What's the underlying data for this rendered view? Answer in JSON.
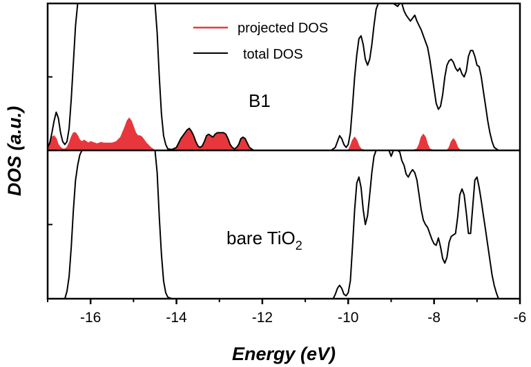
{
  "chart_data": {
    "type": "line",
    "xlabel": "Energy (eV)",
    "ylabel": "DOS (a.u.)",
    "xlim": [
      -17,
      -6
    ],
    "x_ticks": [
      "-16",
      "-14",
      "-12",
      "-10",
      "-8",
      "-6"
    ],
    "legend": {
      "position": "top-center",
      "entries": [
        {
          "name": "projected DOS",
          "color": "#e8373c"
        },
        {
          "name": "total DOS",
          "color": "#000000"
        }
      ]
    },
    "panels": [
      {
        "label": "B1",
        "position": "top",
        "ylim": [
          0,
          1
        ],
        "series": [
          {
            "name": "total DOS",
            "color": "#000000",
            "x": [
              -17.0,
              -16.95,
              -16.9,
              -16.85,
              -16.8,
              -16.75,
              -16.7,
              -16.65,
              -16.6,
              -16.55,
              -16.5,
              -16.45,
              -16.4,
              -16.35,
              -16.3,
              -16.25,
              -14.5,
              -14.45,
              -14.4,
              -14.35,
              -14.3,
              -14.25,
              -14.2,
              -14.1,
              -14.0,
              -13.95,
              -13.9,
              -13.85,
              -13.8,
              -13.75,
              -13.7,
              -13.65,
              -13.6,
              -13.55,
              -13.5,
              -13.45,
              -13.4,
              -13.35,
              -13.3,
              -13.25,
              -13.2,
              -13.15,
              -13.1,
              -13.05,
              -13.0,
              -12.95,
              -12.9,
              -12.85,
              -12.8,
              -12.75,
              -12.7,
              -12.65,
              -12.6,
              -12.55,
              -12.5,
              -12.45,
              -12.4,
              -12.35,
              -12.3,
              -12.25,
              -12.2,
              -12.1,
              -11.0,
              -10.4,
              -10.3,
              -10.25,
              -10.2,
              -10.15,
              -10.1,
              -10.05,
              -10.0,
              -9.95,
              -9.9,
              -9.85,
              -9.8,
              -9.75,
              -9.7,
              -9.65,
              -9.6,
              -9.55,
              -9.5,
              -9.45,
              -9.4,
              -9.35,
              -9.3,
              -9.25,
              -9.2,
              -9.15,
              -9.1,
              -9.05,
              -9.0,
              -8.95,
              -8.9,
              -8.85,
              -8.8,
              -8.75,
              -8.7,
              -8.65,
              -8.6,
              -8.55,
              -8.5,
              -8.45,
              -8.4,
              -8.35,
              -8.3,
              -8.25,
              -8.2,
              -8.15,
              -8.1,
              -8.05,
              -8.0,
              -7.95,
              -7.9,
              -7.85,
              -7.8,
              -7.75,
              -7.7,
              -7.65,
              -7.6,
              -7.55,
              -7.5,
              -7.45,
              -7.4,
              -7.35,
              -7.3,
              -7.25,
              -7.2,
              -7.15,
              -7.1,
              -7.05,
              -7.0,
              -6.95,
              -6.9,
              -6.85,
              -6.8,
              -6.75,
              -6.7,
              -6.65,
              -6.6,
              -6.5,
              -6.0
            ],
            "y": [
              0.02,
              0.05,
              0.12,
              0.2,
              0.26,
              0.22,
              0.12,
              0.06,
              0.04,
              0.06,
              0.15,
              0.35,
              0.6,
              0.85,
              1.0,
              1.0,
              1.0,
              0.8,
              0.5,
              0.25,
              0.1,
              0.04,
              0.01,
              0.005,
              0.02,
              0.05,
              0.08,
              0.1,
              0.12,
              0.14,
              0.15,
              0.13,
              0.1,
              0.06,
              0.03,
              0.02,
              0.03,
              0.06,
              0.1,
              0.11,
              0.1,
              0.09,
              0.11,
              0.12,
              0.12,
              0.12,
              0.12,
              0.11,
              0.08,
              0.04,
              0.02,
              0.01,
              0.02,
              0.04,
              0.08,
              0.09,
              0.08,
              0.05,
              0.02,
              0.01,
              0.0,
              0.0,
              0.0,
              0.0,
              0.02,
              0.06,
              0.1,
              0.08,
              0.04,
              0.02,
              0.04,
              0.12,
              0.3,
              0.5,
              0.65,
              0.76,
              0.78,
              0.72,
              0.62,
              0.58,
              0.62,
              0.72,
              0.85,
              0.96,
              1.0,
              1.0,
              1.0,
              1.0,
              1.0,
              1.0,
              1.0,
              1.0,
              0.99,
              0.98,
              1.0,
              1.0,
              0.95,
              0.92,
              0.9,
              0.88,
              0.9,
              0.92,
              0.88,
              0.85,
              0.82,
              0.78,
              0.74,
              0.7,
              0.62,
              0.52,
              0.42,
              0.32,
              0.28,
              0.3,
              0.38,
              0.5,
              0.58,
              0.61,
              0.62,
              0.6,
              0.56,
              0.54,
              0.56,
              0.52,
              0.5,
              0.54,
              0.64,
              0.68,
              0.68,
              0.64,
              0.58,
              0.57,
              0.5,
              0.4,
              0.3,
              0.2,
              0.12,
              0.06,
              0.02,
              0.0,
              0.0
            ]
          },
          {
            "name": "projected DOS",
            "color": "#e8373c",
            "fill": true,
            "x": [
              -17.0,
              -16.95,
              -16.9,
              -16.85,
              -16.8,
              -16.75,
              -16.7,
              -16.65,
              -16.6,
              -16.55,
              -16.5,
              -16.45,
              -16.4,
              -16.35,
              -16.3,
              -16.25,
              -16.2,
              -16.15,
              -16.1,
              -16.05,
              -16.0,
              -15.9,
              -15.85,
              -15.8,
              -15.75,
              -15.7,
              -15.6,
              -15.5,
              -15.4,
              -15.3,
              -15.2,
              -15.15,
              -15.1,
              -15.05,
              -15.0,
              -14.95,
              -14.9,
              -14.85,
              -14.8,
              -14.75,
              -14.7,
              -14.6,
              -14.55,
              -14.5,
              -14.4,
              -14.2,
              -14.0,
              -13.95,
              -13.9,
              -13.85,
              -13.8,
              -13.75,
              -13.7,
              -13.65,
              -13.6,
              -13.55,
              -13.5,
              -13.45,
              -13.4,
              -13.35,
              -13.3,
              -13.25,
              -13.2,
              -13.15,
              -13.1,
              -13.05,
              -13.0,
              -12.95,
              -12.9,
              -12.85,
              -12.8,
              -12.75,
              -12.7,
              -12.65,
              -12.6,
              -12.55,
              -12.5,
              -12.45,
              -12.4,
              -12.35,
              -12.3,
              -12.25,
              -12.2,
              -12.1,
              -10.0,
              -9.95,
              -9.9,
              -9.85,
              -9.8,
              -9.75,
              -9.7,
              -9.6,
              -8.5,
              -8.4,
              -8.35,
              -8.3,
              -8.25,
              -8.2,
              -8.15,
              -8.1,
              -8.0,
              -7.7,
              -7.65,
              -7.6,
              -7.55,
              -7.5,
              -7.45,
              -7.4,
              -7.3,
              -6.0
            ],
            "y": [
              0.02,
              0.06,
              0.09,
              0.1,
              0.08,
              0.04,
              0.02,
              0.01,
              0.01,
              0.02,
              0.05,
              0.09,
              0.12,
              0.12,
              0.1,
              0.07,
              0.06,
              0.07,
              0.06,
              0.05,
              0.06,
              0.05,
              0.045,
              0.05,
              0.055,
              0.05,
              0.05,
              0.05,
              0.06,
              0.09,
              0.16,
              0.2,
              0.22,
              0.2,
              0.16,
              0.12,
              0.1,
              0.1,
              0.09,
              0.07,
              0.05,
              0.02,
              0.01,
              0.0,
              0.0,
              0.0,
              0.02,
              0.05,
              0.08,
              0.1,
              0.12,
              0.14,
              0.15,
              0.13,
              0.1,
              0.06,
              0.03,
              0.02,
              0.03,
              0.06,
              0.1,
              0.11,
              0.1,
              0.09,
              0.11,
              0.12,
              0.12,
              0.12,
              0.12,
              0.11,
              0.08,
              0.04,
              0.02,
              0.01,
              0.02,
              0.04,
              0.08,
              0.09,
              0.08,
              0.05,
              0.02,
              0.01,
              0.0,
              0.0,
              0.0,
              0.03,
              0.07,
              0.09,
              0.07,
              0.03,
              0.01,
              0.0,
              0.0,
              0.01,
              0.04,
              0.09,
              0.11,
              0.09,
              0.04,
              0.01,
              0.0,
              0.0,
              0.02,
              0.06,
              0.08,
              0.06,
              0.02,
              0.005,
              0.0,
              0.0
            ]
          }
        ]
      },
      {
        "label": "bare TiO",
        "label_subscript": "2",
        "position": "bottom",
        "ylim": [
          0,
          1
        ],
        "series": [
          {
            "name": "total DOS",
            "color": "#000000",
            "x": [
              -17.0,
              -16.8,
              -16.6,
              -16.55,
              -16.5,
              -16.45,
              -16.4,
              -16.35,
              -16.3,
              -16.25,
              -16.2,
              -16.15,
              -14.5,
              -14.45,
              -14.4,
              -14.35,
              -14.3,
              -14.25,
              -14.2,
              -14.1,
              -11.0,
              -10.35,
              -10.3,
              -10.25,
              -10.2,
              -10.15,
              -10.1,
              -10.05,
              -10.0,
              -9.95,
              -9.9,
              -9.85,
              -9.8,
              -9.75,
              -9.7,
              -9.65,
              -9.6,
              -9.55,
              -9.5,
              -9.45,
              -9.4,
              -9.35,
              -9.3,
              -9.25,
              -9.2,
              -9.15,
              -9.1,
              -9.05,
              -9.0,
              -8.95,
              -8.9,
              -8.85,
              -8.8,
              -8.75,
              -8.7,
              -8.65,
              -8.6,
              -8.55,
              -8.5,
              -8.45,
              -8.4,
              -8.35,
              -8.3,
              -8.25,
              -8.2,
              -8.15,
              -8.1,
              -8.05,
              -8.0,
              -7.95,
              -7.9,
              -7.85,
              -7.8,
              -7.75,
              -7.7,
              -7.65,
              -7.6,
              -7.55,
              -7.5,
              -7.45,
              -7.4,
              -7.35,
              -7.3,
              -7.25,
              -7.2,
              -7.15,
              -7.1,
              -7.05,
              -7.0,
              -6.95,
              -6.9,
              -6.85,
              -6.8,
              -6.75,
              -6.7,
              -6.65,
              -6.6,
              -6.55,
              -6.5,
              -6.0
            ],
            "y": [
              0.0,
              0.0,
              0.0,
              0.05,
              0.15,
              0.35,
              0.6,
              0.8,
              0.9,
              0.97,
              1.0,
              1.0,
              1.0,
              0.85,
              0.55,
              0.3,
              0.12,
              0.04,
              0.01,
              0.0,
              0.0,
              0.0,
              0.03,
              0.07,
              0.09,
              0.07,
              0.03,
              0.02,
              0.04,
              0.12,
              0.35,
              0.6,
              0.78,
              0.82,
              0.75,
              0.6,
              0.5,
              0.56,
              0.7,
              0.85,
              0.96,
              1.0,
              1.0,
              1.0,
              1.0,
              1.0,
              1.0,
              1.0,
              0.96,
              1.0,
              1.0,
              1.0,
              0.99,
              0.93,
              0.9,
              0.84,
              0.82,
              0.85,
              0.87,
              0.85,
              0.8,
              0.7,
              0.6,
              0.53,
              0.5,
              0.48,
              0.44,
              0.4,
              0.37,
              0.36,
              0.41,
              0.35,
              0.27,
              0.24,
              0.28,
              0.38,
              0.42,
              0.43,
              0.44,
              0.55,
              0.7,
              0.74,
              0.7,
              0.58,
              0.44,
              0.44,
              0.62,
              0.8,
              0.82,
              0.75,
              0.66,
              0.56,
              0.46,
              0.36,
              0.26,
              0.16,
              0.09,
              0.04,
              0.0,
              0.0
            ]
          }
        ]
      }
    ]
  }
}
